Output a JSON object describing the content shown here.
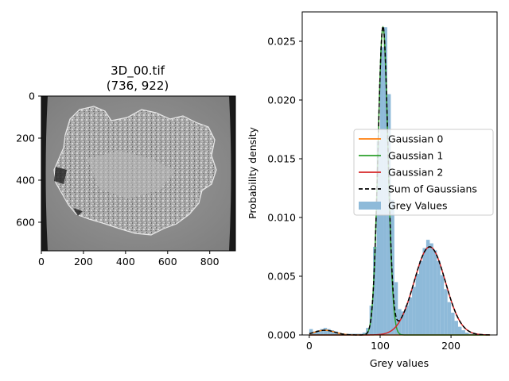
{
  "figure": {
    "image_panel": {
      "title_line1": "3D_00.tif",
      "title_line2": "(736, 922)",
      "x_ticks": [
        0,
        200,
        400,
        600,
        800
      ],
      "y_ticks": [
        0,
        200,
        400,
        600
      ],
      "xlim": [
        0,
        922
      ],
      "ylim": [
        736,
        0
      ]
    }
  },
  "chart_data": {
    "type": "histogram",
    "xlabel": "Grey values",
    "ylabel": "Probability density",
    "xlim": [
      -10,
      265
    ],
    "ylim": [
      0,
      0.0275
    ],
    "x_ticks": [
      0,
      100,
      200
    ],
    "y_ticks": [
      0.0,
      0.005,
      0.01,
      0.015,
      0.02,
      0.025
    ],
    "y_tick_labels": [
      "0.000",
      "0.005",
      "0.010",
      "0.015",
      "0.020",
      "0.025"
    ],
    "legend_position": "center-right",
    "legend": [
      {
        "label": "Gaussian 0",
        "color": "#ff7f0e",
        "style": "solid"
      },
      {
        "label": "Gaussian 1",
        "color": "#2ca02c",
        "style": "solid"
      },
      {
        "label": "Gaussian 2",
        "color": "#d62728",
        "style": "solid"
      },
      {
        "label": "Sum of Gaussians",
        "color": "#000000",
        "style": "dashed"
      },
      {
        "label": "Grey Values",
        "color": "#8ebad9",
        "style": "patch"
      }
    ],
    "gaussians": [
      {
        "name": "Gaussian 0",
        "mean": 22,
        "sigma": 14,
        "peak": 0.0004,
        "color": "#ff7f0e"
      },
      {
        "name": "Gaussian 1",
        "mean": 104,
        "sigma": 7,
        "peak": 0.0262,
        "color": "#2ca02c"
      },
      {
        "name": "Gaussian 2",
        "mean": 170,
        "sigma": 22,
        "peak": 0.0075,
        "color": "#d62728"
      }
    ],
    "histogram": {
      "color": "#8ebad9",
      "bins": [
        [
          0,
          0.0005
        ],
        [
          5,
          0.0003
        ],
        [
          10,
          0.0004
        ],
        [
          15,
          0.0005
        ],
        [
          20,
          0.0006
        ],
        [
          25,
          0.0005
        ],
        [
          30,
          0.0004
        ],
        [
          35,
          0.0003
        ],
        [
          40,
          0.0002
        ],
        [
          45,
          0.0001
        ],
        [
          50,
          0.0001
        ],
        [
          55,
          0.0001
        ],
        [
          60,
          0.0001
        ],
        [
          65,
          0.0001
        ],
        [
          70,
          0.0001
        ],
        [
          75,
          0.0002
        ],
        [
          80,
          0.0006
        ],
        [
          85,
          0.0025
        ],
        [
          90,
          0.0075
        ],
        [
          95,
          0.0165
        ],
        [
          100,
          0.0245
        ],
        [
          105,
          0.0262
        ],
        [
          110,
          0.0205
        ],
        [
          115,
          0.0115
        ],
        [
          120,
          0.0045
        ],
        [
          125,
          0.0022
        ],
        [
          130,
          0.002
        ],
        [
          135,
          0.0025
        ],
        [
          140,
          0.0032
        ],
        [
          145,
          0.0041
        ],
        [
          150,
          0.0052
        ],
        [
          155,
          0.0063
        ],
        [
          160,
          0.0074
        ],
        [
          165,
          0.0081
        ],
        [
          170,
          0.0078
        ],
        [
          175,
          0.0072
        ],
        [
          180,
          0.0063
        ],
        [
          185,
          0.0051
        ],
        [
          190,
          0.0039
        ],
        [
          195,
          0.0028
        ],
        [
          200,
          0.0019
        ],
        [
          205,
          0.0012
        ],
        [
          210,
          0.0007
        ],
        [
          215,
          0.0004
        ],
        [
          220,
          0.0002
        ],
        [
          225,
          0.0001
        ],
        [
          230,
          0.0001
        ],
        [
          235,
          0.0
        ],
        [
          240,
          0.0
        ],
        [
          245,
          0.0
        ]
      ],
      "bin_width": 5
    }
  }
}
